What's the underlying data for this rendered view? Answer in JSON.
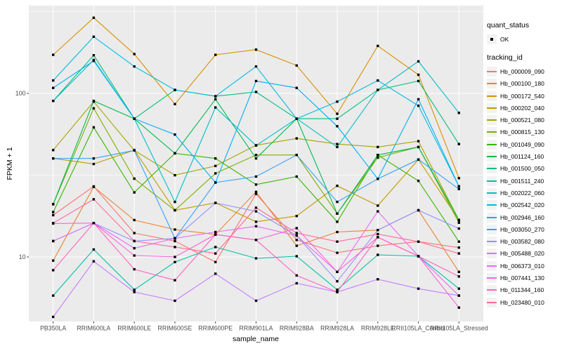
{
  "figure": {
    "background": "#FFFFFF",
    "panel_background": "#EBEBEB",
    "gridline_color": "#FFFFFF",
    "tick_color": "#333333",
    "tick_label_color": "#4D4D4D",
    "axis_title_color": "#000000",
    "point_color": "#000000",
    "legend_key_background": "#F2F2F2"
  },
  "chart_data": {
    "type": "line",
    "title": "",
    "xlabel": "sample_name",
    "ylabel": "FPKM + 1",
    "y_scale": "log10",
    "ylim": [
      4.2,
      295
    ],
    "grid": true,
    "point_marker": "square",
    "y_ticks": [
      {
        "label": "100",
        "value": 100
      },
      {
        "label": "10",
        "value": 10
      }
    ],
    "y_minor_breaks": [
      316,
      31.6
    ],
    "categories": [
      "PB350LA",
      "RRIM600LA",
      "RRIM600LE",
      "RRIM600SE",
      "RRIM600PE",
      "RRIM901LA",
      "RRIM928BA",
      "RRIM928LA",
      "RRIM928LE",
      "RRII105LA_Control",
      "RRII105LA_Stressed"
    ],
    "legend": {
      "position": "right",
      "quant_status_title": "quant_status",
      "quant_status_items": [
        {
          "label": "OK",
          "marker": "black-square"
        }
      ],
      "tracking_id_title": "tracking_id"
    },
    "series": [
      {
        "name": "Hb_000009_090",
        "color": "#F8766D",
        "values": [
          18,
          27,
          14,
          12.5,
          9.3,
          24.3,
          12.7,
          10.6,
          11.7,
          12.4,
          11.4
        ]
      },
      {
        "name": "Hb_000100_180",
        "color": "#EA8331",
        "values": [
          9.5,
          26.8,
          16.8,
          14.7,
          13.7,
          25,
          11.7,
          14.2,
          14.6,
          19.3,
          8.1
        ]
      },
      {
        "name": "Hb_000172_540",
        "color": "#D89000",
        "values": [
          172,
          290,
          174,
          86,
          172,
          185,
          148,
          75,
          195,
          130,
          30.3
        ]
      },
      {
        "name": "Hb_000202_040",
        "color": "#C09B00",
        "values": [
          40,
          37,
          45,
          19.3,
          21.4,
          16.4,
          17.8,
          27.2,
          20.6,
          39.4,
          16.8
        ]
      },
      {
        "name": "Hb_000521_080",
        "color": "#A3A500",
        "values": [
          45,
          89,
          44.8,
          31.6,
          36,
          48.2,
          53,
          49,
          47,
          51,
          16.8
        ]
      },
      {
        "name": "Hb_000815_130",
        "color": "#7CAE00",
        "values": [
          21,
          81,
          30.1,
          19.3,
          32.4,
          42,
          42,
          18.4,
          40.5,
          47,
          16.2
        ]
      },
      {
        "name": "Hb_001049_090",
        "color": "#39B600",
        "values": [
          18.8,
          62,
          24.8,
          43,
          40,
          27.7,
          31,
          16.4,
          42,
          29.2,
          12.4
        ]
      },
      {
        "name": "Hb_001124_160",
        "color": "#00BB4E",
        "values": [
          21,
          90,
          70,
          43,
          92,
          40,
          70,
          18.4,
          42,
          47,
          16.8
        ]
      },
      {
        "name": "Hb_001500_050",
        "color": "#00BF7D",
        "values": [
          90,
          171,
          70,
          105,
          96,
          102,
          70,
          70,
          105,
          119,
          49
        ]
      },
      {
        "name": "Hb_001511_240",
        "color": "#00C1A3",
        "values": [
          5.8,
          11.1,
          6.3,
          9.3,
          11.5,
          9.8,
          10.1,
          6.3,
          10.3,
          10.1,
          6.4
        ]
      },
      {
        "name": "Hb_002022_060",
        "color": "#00BFC4",
        "values": [
          90,
          160,
          70,
          21.7,
          82,
          48,
          70,
          47,
          105,
          157,
          76
        ]
      },
      {
        "name": "Hb_002542_020",
        "color": "#00BAE0",
        "values": [
          120,
          222,
          146,
          105,
          96,
          146,
          70,
          89,
          120,
          84,
          27
        ]
      },
      {
        "name": "Hb_002946_160",
        "color": "#00B0F6",
        "values": [
          108,
          158,
          70,
          56,
          28.5,
          119,
          108,
          63,
          30,
          92,
          27
        ]
      },
      {
        "name": "Hb_003050_270",
        "color": "#35A2FF",
        "values": [
          40,
          40,
          44.8,
          13,
          28.5,
          31,
          42,
          21.7,
          30,
          39.4,
          26
        ]
      },
      {
        "name": "Hb_003582_080",
        "color": "#9590FF",
        "values": [
          12.5,
          16.1,
          12.5,
          13,
          21.4,
          19,
          13.5,
          7.1,
          14.6,
          19.3,
          14.9
        ]
      },
      {
        "name": "Hb_005488_020",
        "color": "#C77CFF",
        "values": [
          4.3,
          9.4,
          6.1,
          5.4,
          7.9,
          5.4,
          6.9,
          6.1,
          7.3,
          6.4,
          5.8
        ]
      },
      {
        "name": "Hb_006373_010",
        "color": "#E76BF3",
        "values": [
          12.5,
          16.1,
          11.3,
          13,
          14.2,
          15.4,
          13.5,
          8.1,
          19,
          10.1,
          5.8
        ]
      },
      {
        "name": "Hb_007441_130",
        "color": "#FA62DB",
        "values": [
          16,
          16.1,
          10.2,
          10,
          13.7,
          12.7,
          15,
          8.1,
          13.2,
          10.1,
          4.9
        ]
      },
      {
        "name": "Hb_011344_160",
        "color": "#FF61C3",
        "values": [
          8.3,
          16.1,
          8.4,
          7.2,
          13.7,
          12.7,
          7.7,
          6.1,
          13.2,
          10.1,
          7.6
        ]
      },
      {
        "name": "Hb_023480_010",
        "color": "#FF6A98",
        "values": [
          16.1,
          22.5,
          12.5,
          11.5,
          10.5,
          20,
          14,
          12.4,
          13.8,
          12.4,
          10.5
        ]
      }
    ]
  }
}
